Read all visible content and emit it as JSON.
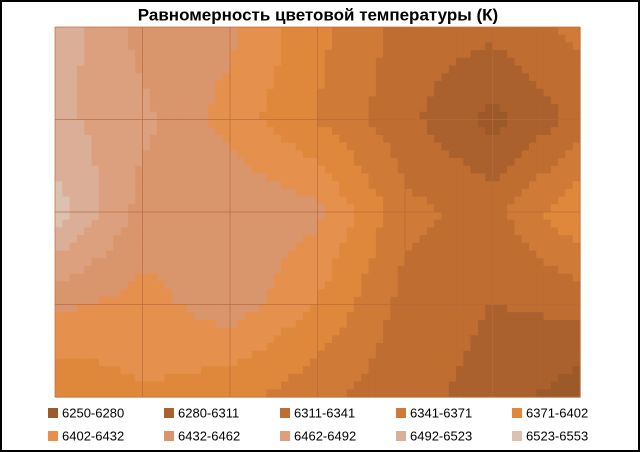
{
  "chart_data": {
    "type": "contour",
    "title": "Равномерность  цветовой температуры (К)",
    "z": [
      [
        6510,
        6450,
        6440,
        6380,
        6330,
        6320,
        6350
      ],
      [
        6500,
        6470,
        6420,
        6370,
        6320,
        6270,
        6320
      ],
      [
        6540,
        6450,
        6460,
        6440,
        6350,
        6330,
        6400
      ],
      [
        6440,
        6420,
        6450,
        6400,
        6330,
        6310,
        6320
      ],
      [
        6370,
        6400,
        6380,
        6350,
        6320,
        6300,
        6260
      ]
    ],
    "levels": [
      6250,
      6280,
      6311,
      6341,
      6371,
      6402,
      6432,
      6462,
      6492,
      6523,
      6553
    ],
    "series": [
      {
        "name": "6250-6280",
        "color": "#9c5a2a"
      },
      {
        "name": "6280-6311",
        "color": "#ab612d"
      },
      {
        "name": "6311-6341",
        "color": "#c06d31"
      },
      {
        "name": "6341-6371",
        "color": "#d07a37"
      },
      {
        "name": "6371-6402",
        "color": "#df883c"
      },
      {
        "name": "6402-6432",
        "color": "#e5914d"
      },
      {
        "name": "6432-6462",
        "color": "#d9956c"
      },
      {
        "name": "6462-6492",
        "color": "#dca07e"
      },
      {
        "name": "6492-6523",
        "color": "#dbae97"
      },
      {
        "name": "6523-6553",
        "color": "#dcc0b0"
      }
    ]
  }
}
